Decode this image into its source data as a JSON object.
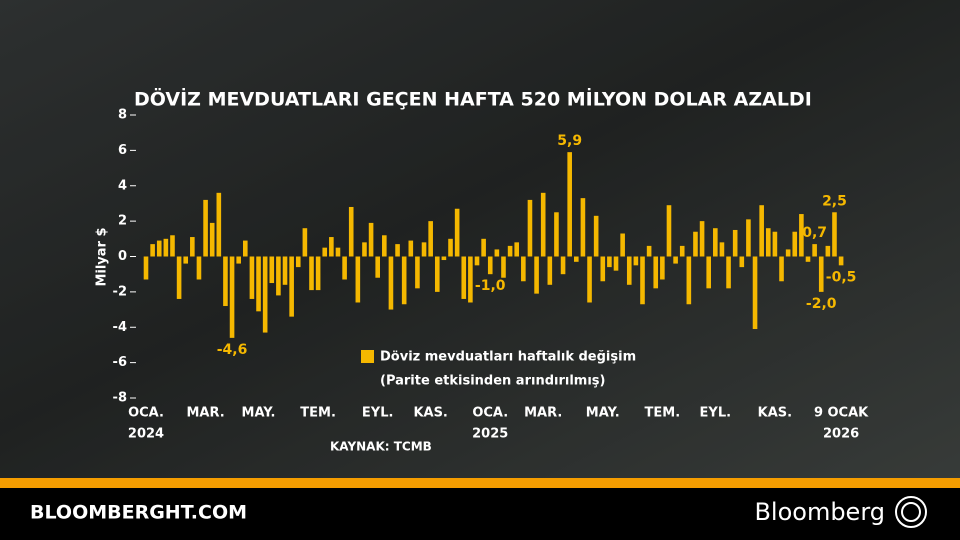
{
  "chart_data": {
    "type": "bar",
    "title": "DÖVİZ MEVDUATLARI GEÇEN HAFTA 520 MİLYON DOLAR AZALDI",
    "y_label": "Milyar $",
    "legend": [
      "Döviz mevduatları haftalık değişim",
      "(Parite etkisinden arındırılmış)"
    ],
    "source": "KAYNAK: TCMB",
    "footer_site": "BLOOMBERGHT.COM",
    "footer_brand": "Bloomberg",
    "color": "#f5b800",
    "ylim": [
      -8,
      8
    ],
    "yticks": [
      -8,
      -6,
      -4,
      -2,
      0,
      2,
      4,
      6,
      8
    ],
    "grid": false,
    "categories": [
      "OCA.",
      null,
      null,
      null,
      null,
      null,
      null,
      null,
      null,
      "MAR.",
      null,
      null,
      null,
      null,
      null,
      null,
      null,
      "MAY.",
      null,
      null,
      null,
      null,
      null,
      null,
      null,
      null,
      "TEM.",
      null,
      null,
      null,
      null,
      null,
      null,
      null,
      null,
      "EYL.",
      null,
      null,
      null,
      null,
      null,
      null,
      null,
      "KAS.",
      null,
      null,
      null,
      null,
      null,
      null,
      null,
      null,
      "OCA.",
      null,
      null,
      null,
      null,
      null,
      null,
      null,
      "MAR.",
      null,
      null,
      null,
      null,
      null,
      null,
      null,
      null,
      "MAY.",
      null,
      null,
      null,
      null,
      null,
      null,
      null,
      null,
      "TEM.",
      null,
      null,
      null,
      null,
      null,
      null,
      null,
      "EYL.",
      null,
      null,
      null,
      null,
      null,
      null,
      null,
      null,
      "KAS.",
      null,
      null,
      null,
      null,
      null,
      null,
      null,
      null,
      null,
      "9 OCAK"
    ],
    "category_years": [
      "2024",
      null,
      null,
      null,
      null,
      null,
      null,
      null,
      null,
      null,
      null,
      null,
      null,
      null,
      null,
      null,
      null,
      null,
      null,
      null,
      null,
      null,
      null,
      null,
      null,
      null,
      null,
      null,
      null,
      null,
      null,
      null,
      null,
      null,
      null,
      null,
      null,
      null,
      null,
      null,
      null,
      null,
      null,
      null,
      null,
      null,
      null,
      null,
      null,
      null,
      null,
      null,
      "2025",
      null,
      null,
      null,
      null,
      null,
      null,
      null,
      null,
      null,
      null,
      null,
      null,
      null,
      null,
      null,
      null,
      null,
      null,
      null,
      null,
      null,
      null,
      null,
      null,
      null,
      null,
      null,
      null,
      null,
      null,
      null,
      null,
      null,
      null,
      null,
      null,
      null,
      null,
      null,
      null,
      null,
      null,
      null,
      null,
      null,
      null,
      null,
      null,
      null,
      null,
      null,
      null,
      "2026"
    ],
    "values": [
      -1.3,
      0.7,
      0.9,
      1.0,
      1.2,
      -2.4,
      -0.4,
      1.1,
      -1.3,
      3.2,
      1.9,
      3.6,
      -2.8,
      -4.6,
      -0.4,
      0.9,
      -2.4,
      -3.1,
      -4.3,
      -1.5,
      -2.2,
      -1.6,
      -3.4,
      -0.6,
      1.6,
      -1.9,
      -1.9,
      0.5,
      1.1,
      0.5,
      -1.3,
      2.8,
      -2.6,
      0.8,
      1.9,
      -1.2,
      1.2,
      -3.0,
      0.7,
      -2.7,
      0.9,
      -1.8,
      0.8,
      2.0,
      -2.0,
      -0.2,
      1.0,
      2.7,
      -2.4,
      -2.6,
      -0.5,
      1.0,
      -1.0,
      0.4,
      -1.2,
      0.6,
      0.8,
      -1.4,
      3.2,
      -2.1,
      3.6,
      -1.6,
      2.5,
      -1.0,
      5.9,
      -0.3,
      3.3,
      -2.6,
      2.3,
      -1.4,
      -0.6,
      -0.8,
      1.3,
      -1.6,
      -0.5,
      -2.7,
      0.6,
      -1.8,
      -1.3,
      2.9,
      -0.4,
      0.6,
      -2.7,
      1.4,
      2.0,
      -1.8,
      1.6,
      0.8,
      -1.8,
      1.5,
      -0.6,
      2.1,
      -4.1,
      2.9,
      1.6,
      1.4,
      -1.4,
      0.4,
      1.4,
      2.4,
      -0.3,
      0.7,
      -2.0,
      0.6,
      2.5,
      -0.5
    ],
    "value_labels": [
      null,
      null,
      null,
      null,
      null,
      null,
      null,
      null,
      null,
      null,
      null,
      null,
      null,
      "-4,6",
      null,
      null,
      null,
      null,
      null,
      null,
      null,
      null,
      null,
      null,
      null,
      null,
      null,
      null,
      null,
      null,
      null,
      null,
      null,
      null,
      null,
      null,
      null,
      null,
      null,
      null,
      null,
      null,
      null,
      null,
      null,
      null,
      null,
      null,
      null,
      null,
      null,
      null,
      "-1,0",
      null,
      null,
      null,
      null,
      null,
      null,
      null,
      null,
      null,
      null,
      null,
      "5,9",
      null,
      null,
      null,
      null,
      null,
      null,
      null,
      null,
      null,
      null,
      null,
      null,
      null,
      null,
      null,
      null,
      null,
      null,
      null,
      null,
      null,
      null,
      null,
      null,
      null,
      null,
      null,
      null,
      null,
      null,
      null,
      null,
      null,
      null,
      null,
      null,
      "0,7",
      "-2,0",
      null,
      "2,5",
      "-0,5"
    ]
  }
}
